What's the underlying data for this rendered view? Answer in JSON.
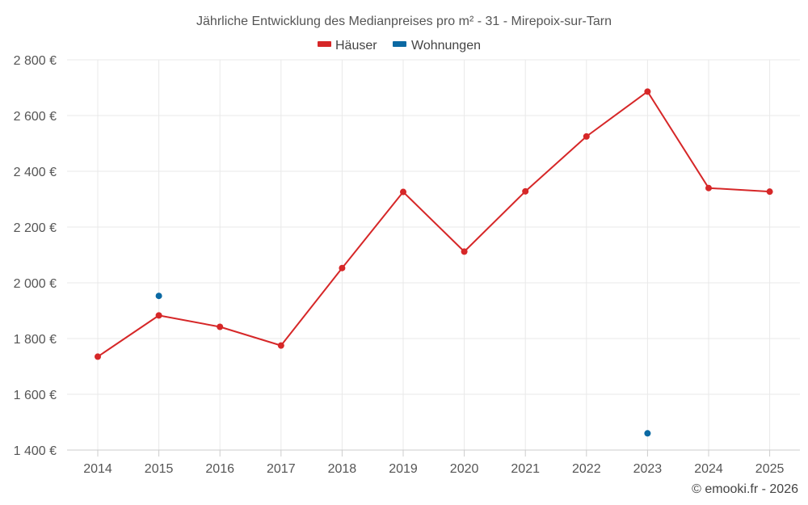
{
  "chart_data": {
    "type": "line",
    "title": "Jährliche Entwicklung des Medianpreises pro m² - 31 - Mirepoix-sur-Tarn",
    "categories": [
      "2014",
      "2015",
      "2016",
      "2017",
      "2018",
      "2019",
      "2020",
      "2021",
      "2022",
      "2023",
      "2024",
      "2025"
    ],
    "ylim": [
      1400,
      2800
    ],
    "yticks": [
      1400,
      1600,
      1800,
      2000,
      2200,
      2400,
      2600,
      2800
    ],
    "ytick_labels": [
      "1 400 €",
      "1 600 €",
      "1 800 €",
      "2 000 €",
      "2 200 €",
      "2 400 €",
      "2 600 €",
      "2 800 €"
    ],
    "grid": true,
    "legend_position": "top-center",
    "series": [
      {
        "name": "Häuser",
        "color": "#d62728",
        "values": [
          1735,
          1883,
          1842,
          1775,
          2053,
          2326,
          2112,
          2328,
          2525,
          2686,
          2340,
          2327
        ]
      },
      {
        "name": "Wohnungen",
        "color": "#0b69a3",
        "values": [
          null,
          1953,
          null,
          null,
          null,
          null,
          null,
          null,
          null,
          1460,
          null,
          null
        ]
      }
    ]
  },
  "credit": "© emooki.fr - 2026"
}
